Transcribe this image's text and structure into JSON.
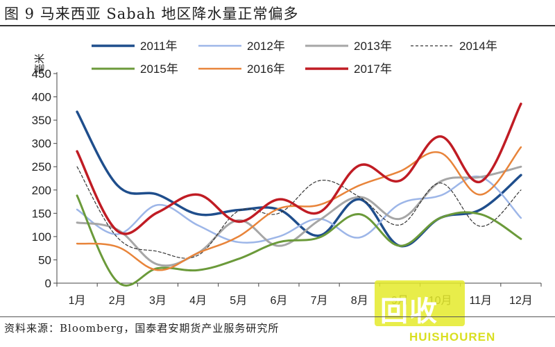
{
  "title": "图 9 马来西亚 Sabah 地区降水量正常偏多",
  "source": "资料来源：Bloomberg，国泰君安期货产业服务研究所",
  "watermark": {
    "text": "回收",
    "sub": "HUISHOUREN"
  },
  "chart_data": {
    "type": "line",
    "ylabel": "毫米",
    "ylim": [
      0,
      450
    ],
    "yticks": [
      0,
      50,
      100,
      150,
      200,
      250,
      300,
      350,
      400,
      450
    ],
    "categories": [
      "1月",
      "2月",
      "3月",
      "4月",
      "5月",
      "6月",
      "7月",
      "8月",
      "9月",
      "10月",
      "11月",
      "12月"
    ],
    "legend_position": "top",
    "series": [
      {
        "name": "2011年",
        "color": "#1f4e8c",
        "width": 3.5,
        "dash": "",
        "values": [
          368,
          210,
          190,
          148,
          157,
          158,
          102,
          180,
          80,
          140,
          158,
          232
        ]
      },
      {
        "name": "2012年",
        "color": "#9db6e8",
        "width": 2.5,
        "dash": "",
        "values": [
          158,
          105,
          168,
          124,
          88,
          100,
          138,
          98,
          170,
          188,
          228,
          140
        ]
      },
      {
        "name": "2013年",
        "color": "#a6a6a6",
        "width": 3,
        "dash": "",
        "values": [
          130,
          115,
          40,
          65,
          135,
          80,
          135,
          185,
          138,
          218,
          228,
          250
        ]
      },
      {
        "name": "2014年",
        "color": "#333333",
        "width": 1.2,
        "dash": "4,3",
        "values": [
          250,
          98,
          68,
          60,
          155,
          150,
          220,
          185,
          125,
          215,
          122,
          200
        ]
      },
      {
        "name": "2015年",
        "color": "#6b9a3a",
        "width": 3,
        "dash": "",
        "values": [
          188,
          3,
          32,
          28,
          52,
          88,
          98,
          148,
          80,
          140,
          148,
          95
        ]
      },
      {
        "name": "2016年",
        "color": "#e8843a",
        "width": 2.5,
        "dash": "",
        "values": [
          85,
          78,
          28,
          65,
          100,
          160,
          168,
          210,
          240,
          280,
          190,
          292
        ]
      },
      {
        "name": "2017年",
        "color": "#c01c24",
        "width": 3.5,
        "dash": "",
        "values": [
          283,
          112,
          152,
          190,
          132,
          180,
          152,
          253,
          220,
          315,
          218,
          385
        ]
      }
    ]
  }
}
